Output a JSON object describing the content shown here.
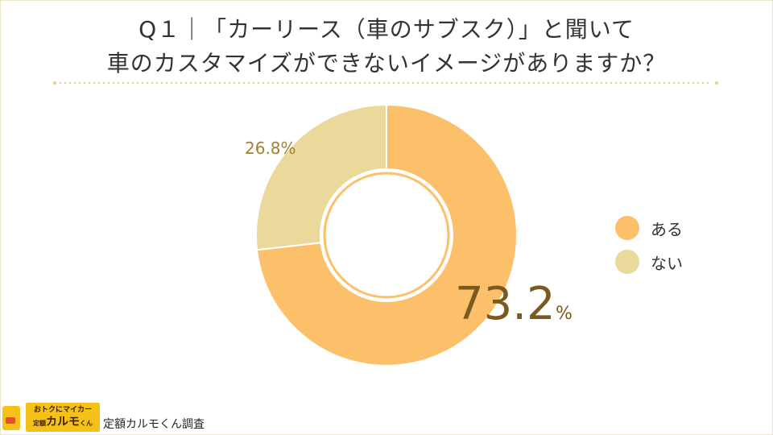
{
  "title": {
    "line1": "Q１｜「カーリース（車のサブスク）」と聞いて",
    "line2": "車のカスタマイズができないイメージがありますか？"
  },
  "chart_data": {
    "type": "pie",
    "donut": true,
    "categories": [
      "ある",
      "ない"
    ],
    "values": [
      73.2,
      26.8
    ],
    "unit": "%",
    "colors": [
      "#fcc06b",
      "#ead99b"
    ],
    "data_labels": [
      "73.2",
      "26.8%"
    ],
    "legend_position": "right"
  },
  "legend": [
    {
      "label": "ある",
      "color": "#fcc06b"
    },
    {
      "label": "ない",
      "color": "#ead99b"
    }
  ],
  "footer": {
    "logo_top": "おトクにマイカー",
    "logo_prefix": "定額",
    "logo_brand": "カルモ",
    "logo_suffix": "くん",
    "survey_text": "定額カルモくん調査"
  }
}
